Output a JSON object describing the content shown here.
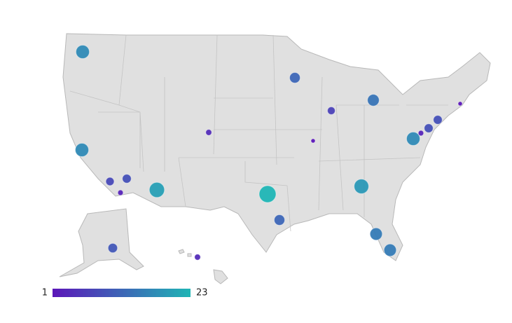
{
  "map_data": {
    "type": "bubble-map",
    "values": [
      17,
      17,
      8,
      3,
      9,
      20,
      4,
      23,
      12,
      12,
      7,
      1,
      14,
      19,
      15,
      15,
      17,
      3,
      9,
      9,
      1,
      10,
      4
    ],
    "legend": {
      "min": 1,
      "max": 23,
      "low_color": "#5b16b8",
      "high_color": "#1fb5b5"
    }
  }
}
